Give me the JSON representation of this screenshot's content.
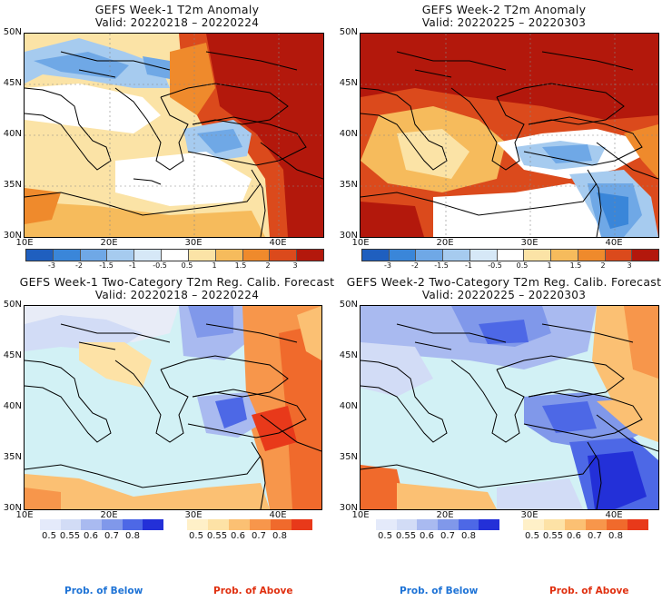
{
  "panels": [
    {
      "title": "GEFS Week-1 T2m Anomaly",
      "valid": "Valid: 20220218 – 20220224"
    },
    {
      "title": "GEFS Week-2 T2m Anomaly",
      "valid": "Valid: 20220225 – 20220303"
    },
    {
      "title": "GEFS Week-1 Two-Category T2m Reg. Calib. Forecast",
      "valid": "Valid: 20220218 – 20220224"
    },
    {
      "title": "GEFS Week-2 Two-Category T2m Reg. Calib. Forecast",
      "valid": "Valid: 20220225 – 20220303"
    }
  ],
  "lat_labels": [
    "50N",
    "45N",
    "40N",
    "35N",
    "30N"
  ],
  "lon_labels": [
    "10E",
    "20E",
    "30E",
    "40E"
  ],
  "anomaly_scale": [
    "-3",
    "-2",
    "-1.5",
    "-1",
    "-0.5",
    "0.5",
    "1",
    "1.5",
    "2",
    "3"
  ],
  "anomaly_colors": [
    "#1f5fbf",
    "#3a86d9",
    "#6fa8e6",
    "#a6cbef",
    "#d6e8f7",
    "#ffffff",
    "#fbe3a6",
    "#f6bb5c",
    "#ef8a2c",
    "#db4a1c",
    "#b3180c"
  ],
  "prob_scale": [
    "0.5",
    "0.55",
    "0.6",
    "0.7",
    "0.8"
  ],
  "below_colors": [
    "#d2dcf6",
    "#a9baf0",
    "#8098ea",
    "#4d68e6",
    "#2330d8"
  ],
  "above_colors": [
    "#fde2a6",
    "#fbc073",
    "#f7964b",
    "#f06a2c",
    "#e8391a"
  ],
  "legend": {
    "below": "Prob. of Below",
    "above": "Prob. of Above"
  },
  "colors": {
    "sea": "#d2f1f5",
    "coast": "#000000"
  }
}
